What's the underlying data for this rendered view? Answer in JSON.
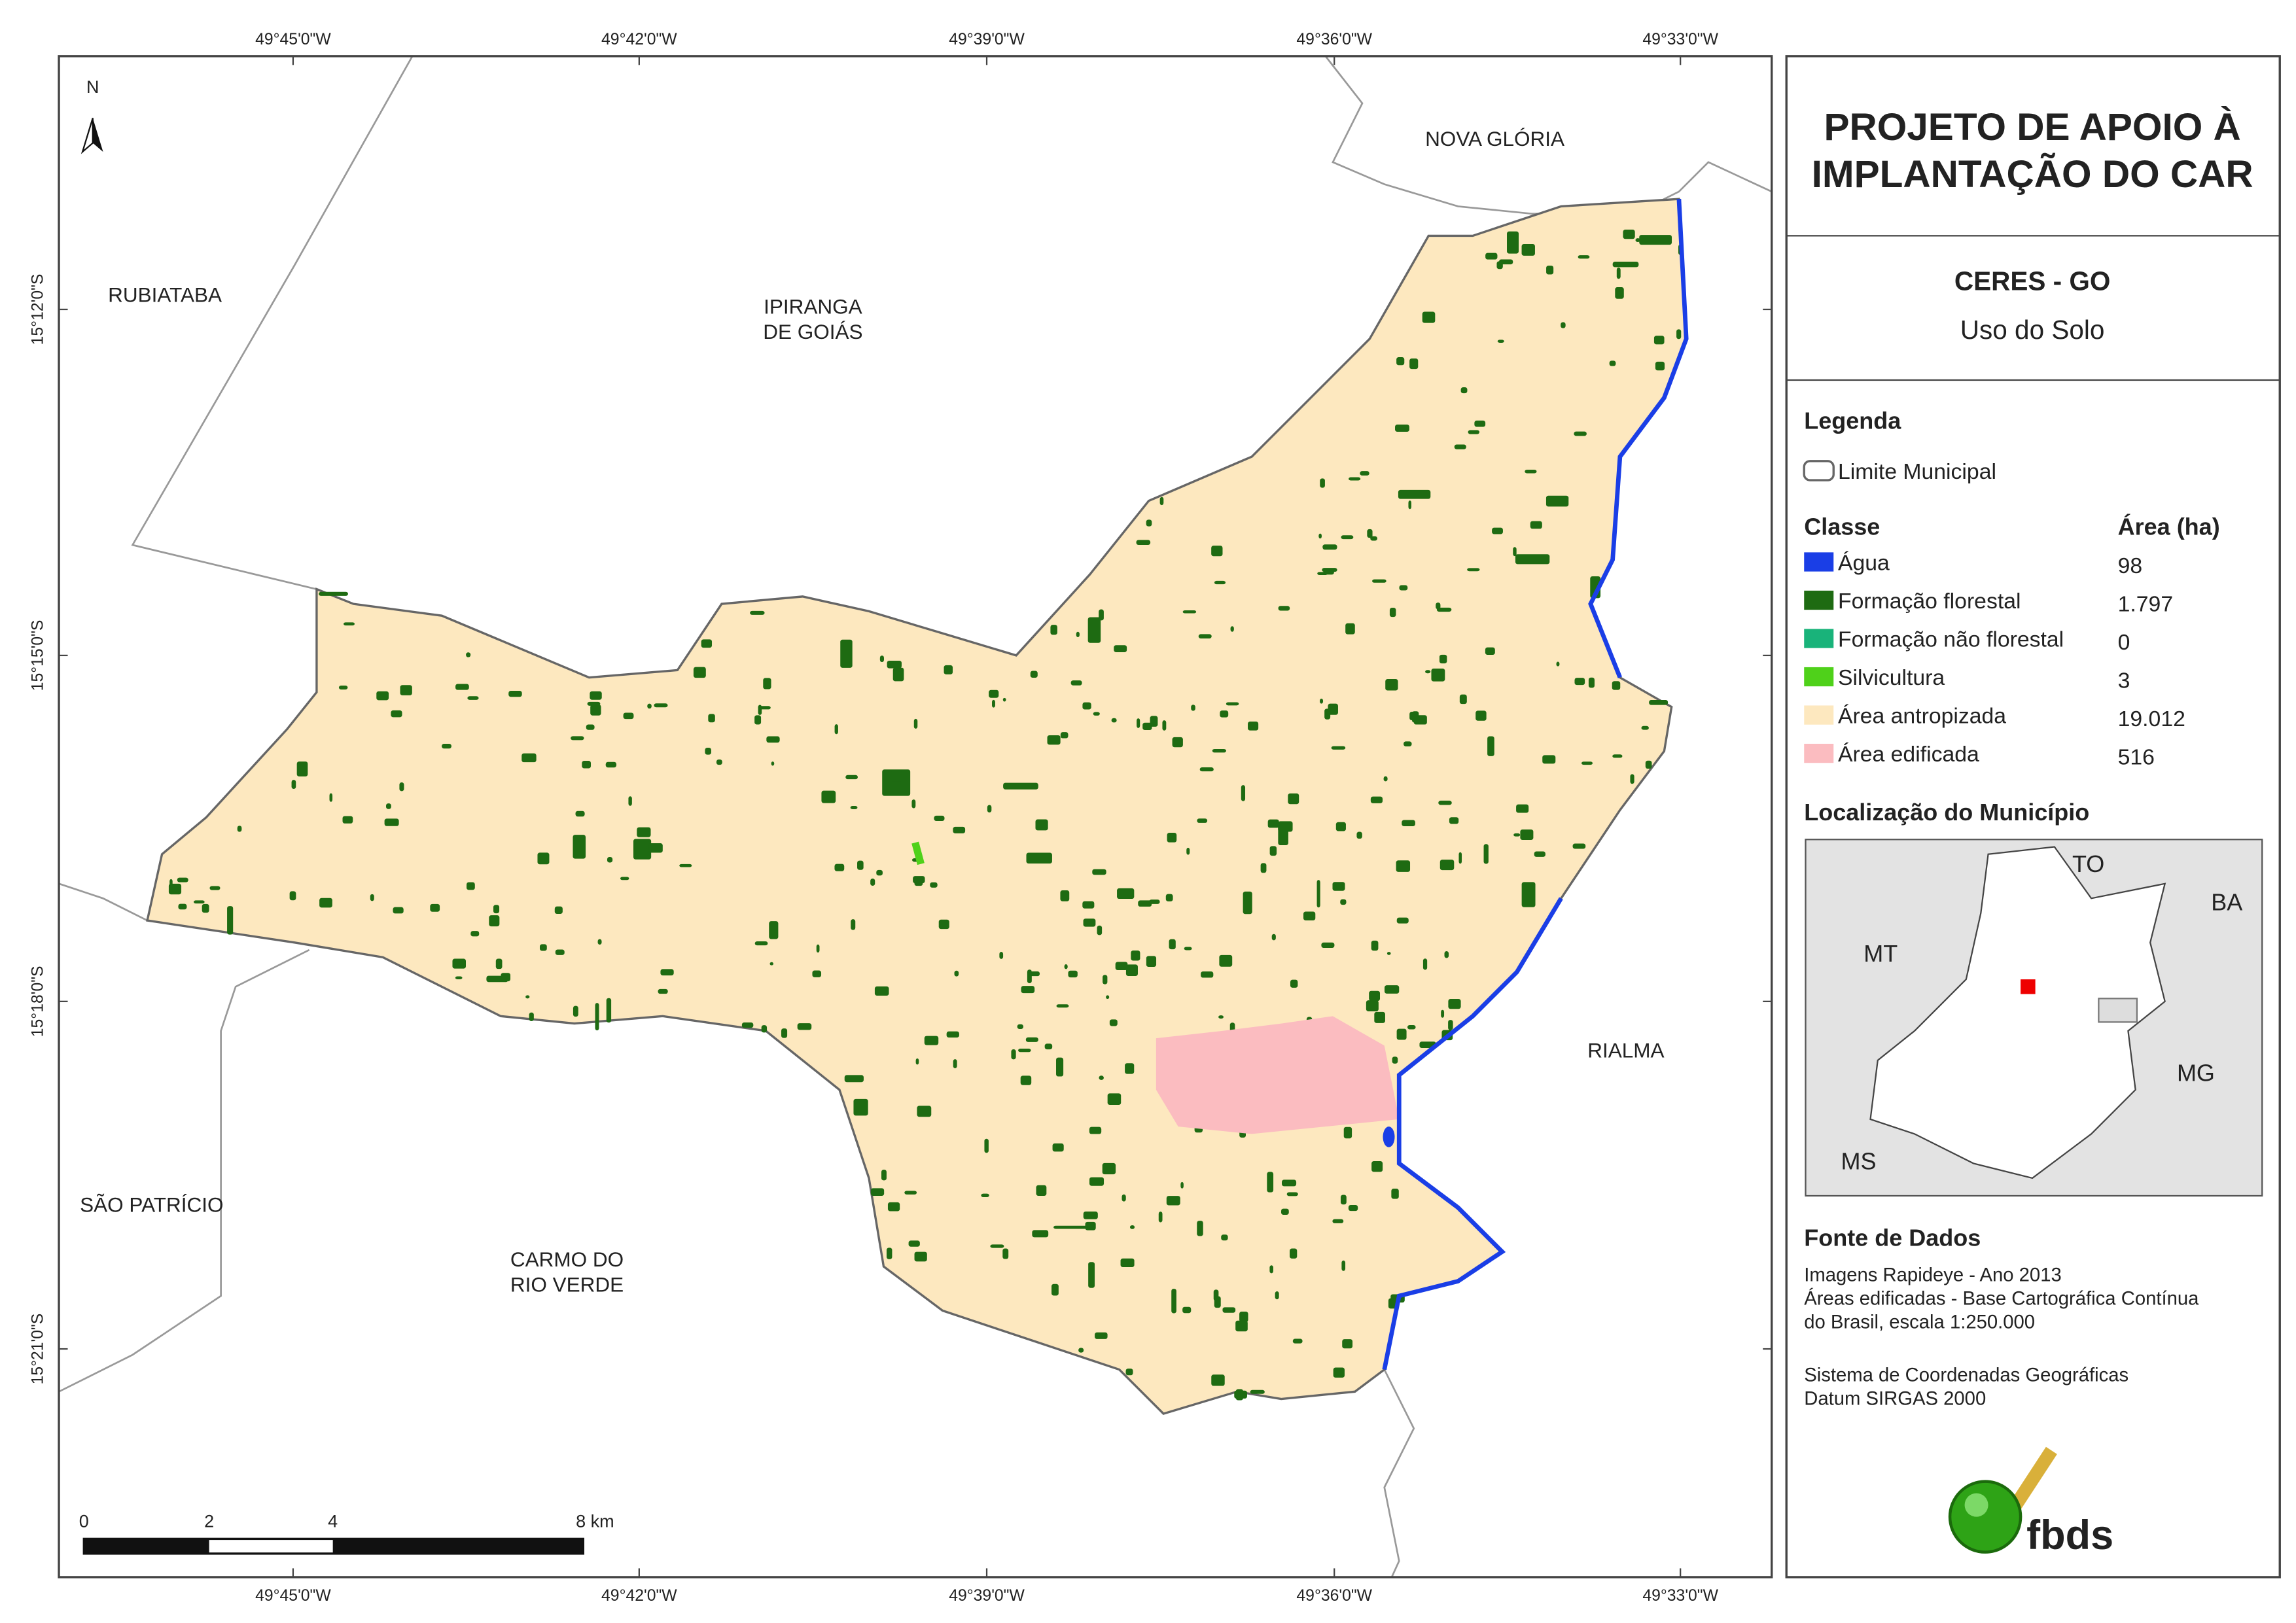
{
  "map": {
    "lon_labels": [
      "49°45'0\"W",
      "49°42'0\"W",
      "49°39'0\"W",
      "49°36'0\"W",
      "49°33'0\"W"
    ],
    "lat_labels": [
      "15°12'0\"S",
      "15°15'0\"S",
      "15°18'0\"S",
      "15°21'0\"S"
    ],
    "places": [
      [
        "RUBIATABA"
      ],
      [
        "IPIRANGA",
        "DE GOIÁS"
      ],
      [
        "NOVA GLÓRIA"
      ],
      [
        "RIALMA"
      ],
      [
        "SÃO PATRÍCIO"
      ],
      [
        "CARMO DO",
        "RIO VERDE"
      ]
    ],
    "north": "N",
    "scale_labels": [
      "0",
      "2",
      "4",
      "8 km"
    ]
  },
  "panel": {
    "title_lines": [
      "PROJETO DE APOIO À",
      "IMPLANTAÇÃO DO CAR"
    ],
    "municipality": "CERES - GO",
    "subtitle": "Uso do Solo",
    "legend_title": "Legenda",
    "boundary": "Limite Municipal",
    "class_header": "Classe",
    "area_header": "Área (ha)",
    "classes": [
      {
        "name": "Água",
        "area": "98",
        "color": "#1a3ee6"
      },
      {
        "name": "Formação florestal",
        "area": "1.797",
        "color": "#1e6b12"
      },
      {
        "name": "Formação não florestal",
        "area": "0",
        "color": "#19b37a"
      },
      {
        "name": "Silvicultura",
        "area": "3",
        "color": "#4fd11a"
      },
      {
        "name": "Área antropizada",
        "area": "19.012",
        "color": "#fde8bf"
      },
      {
        "name": "Área edificada",
        "area": "516",
        "color": "#fbbcc0"
      }
    ],
    "location_title": "Localização do Município",
    "states": [
      "TO",
      "BA",
      "MT",
      "MG",
      "MS"
    ],
    "sources_title": "Fonte de Dados",
    "sources": [
      "Imagens Rapideye - Ano 2013",
      "Áreas edificadas - Base Cartográfica Contínua",
      "do Brasil, escala 1:250.000"
    ],
    "crs": [
      "Sistema de Coordenadas Geográficas",
      "Datum SIRGAS 2000"
    ],
    "logo": "fbds"
  }
}
